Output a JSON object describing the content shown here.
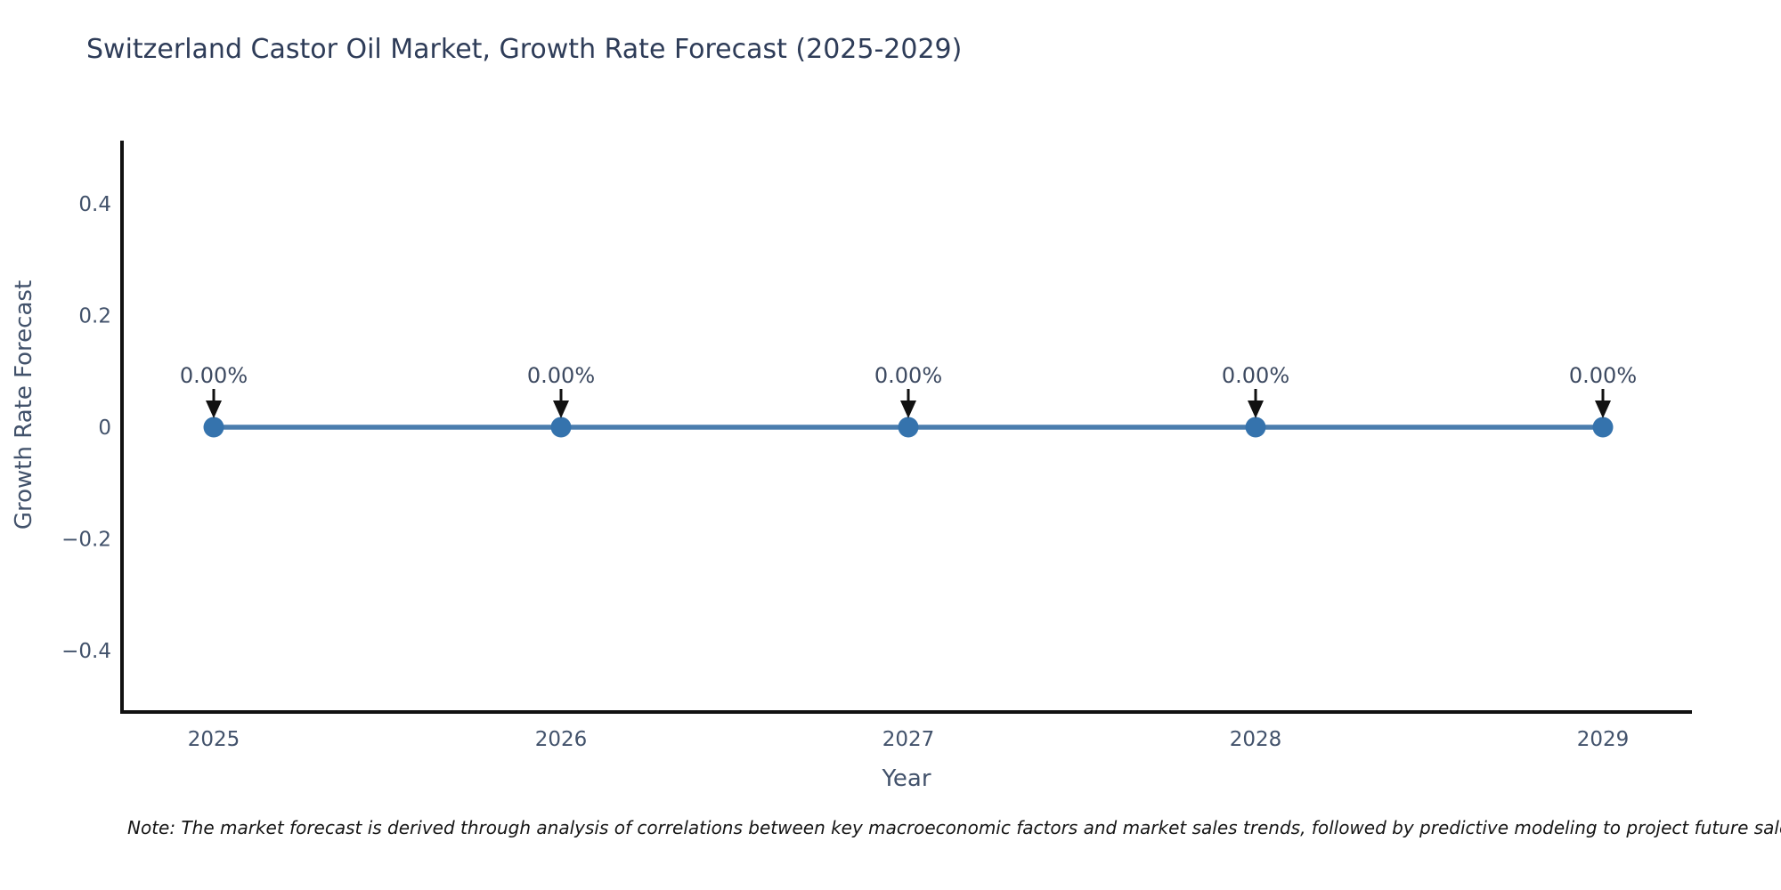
{
  "note": "Note: The market forecast is derived through analysis of correlations between key macroeconomic factors and market sales trends, followed by predictive modeling to project future sales.",
  "chart_data": {
    "type": "line",
    "title": "Switzerland Castor Oil Market, Growth Rate Forecast (2025-2029)",
    "xlabel": "Year",
    "ylabel": "Growth Rate Forecast",
    "x": [
      2025,
      2026,
      2027,
      2028,
      2029
    ],
    "series": [
      {
        "name": "Growth Rate Forecast",
        "values": [
          0,
          0,
          0,
          0,
          0
        ]
      }
    ],
    "point_labels": [
      "0.00%",
      "0.00%",
      "0.00%",
      "0.00%",
      "0.00%"
    ],
    "ylim": [
      -0.51,
      0.51
    ],
    "yticks": {
      "values": [
        0.4,
        0.2,
        0,
        -0.2,
        -0.4
      ],
      "labels": [
        "0.4",
        "0.2",
        "0",
        "−0.2",
        "−0.4"
      ]
    },
    "grid": false,
    "legend": "none",
    "colors": {
      "line": "#4a7dae",
      "marker": "#3573ad",
      "arrow": "#111111",
      "spine": "#111111",
      "title_text": "#2e3c58",
      "axis_text": "#42526b",
      "annotation_text": "#3d4a61",
      "note_text": "#161616"
    }
  }
}
